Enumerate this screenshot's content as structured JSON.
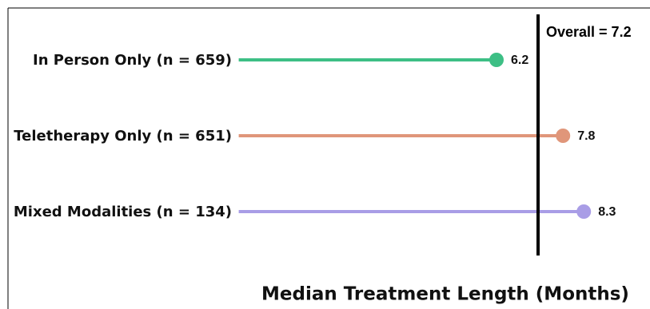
{
  "chart_data": {
    "type": "lollipop",
    "categories": [
      "In Person Only (n = 659)",
      "Teletherapy Only (n = 651)",
      "Mixed Modalities (n = 134)"
    ],
    "values": [
      6.2,
      7.8,
      8.3
    ],
    "colors": [
      "#3dbf85",
      "#e0967a",
      "#a99de6"
    ],
    "xlim": [
      0,
      9.5
    ],
    "reference": {
      "value": 7.2,
      "label": "Overall = 7.2"
    },
    "xlabel": "Median Treatment Length (Months)"
  }
}
